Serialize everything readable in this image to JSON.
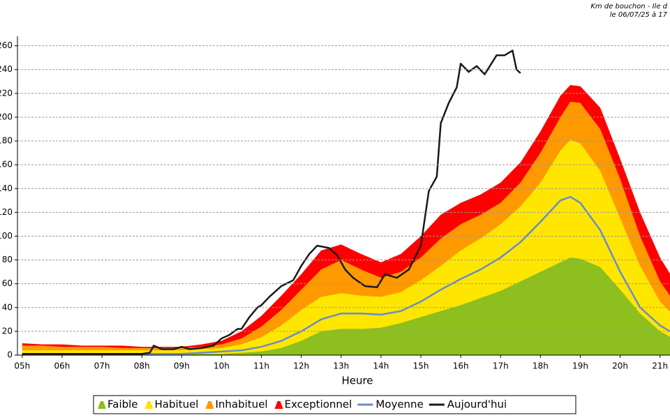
{
  "chart_data": {
    "type": "area",
    "title": "Km de bouchon - Ile d",
    "subtitle": "le 06/07/25 à 17",
    "xlabel": "Heure",
    "x": [
      5,
      5.5,
      6,
      6.5,
      7,
      7.5,
      8,
      8.5,
      9,
      9.5,
      10,
      10.5,
      11,
      11.5,
      12,
      12.5,
      13,
      13.5,
      14,
      14.5,
      15,
      15.5,
      16,
      16.5,
      17,
      17.5,
      18,
      18.5,
      18.75,
      19,
      19.5,
      20,
      20.5,
      21,
      21.5
    ],
    "xlim": [
      4.88,
      21.25
    ],
    "xticks": [
      {
        "value": 5,
        "label": "05h"
      },
      {
        "value": 6,
        "label": "06h"
      },
      {
        "value": 7,
        "label": "07h"
      },
      {
        "value": 8,
        "label": "08h"
      },
      {
        "value": 9,
        "label": "09h"
      },
      {
        "value": 10,
        "label": "10h"
      },
      {
        "value": 11,
        "label": "11h"
      },
      {
        "value": 12,
        "label": "12h"
      },
      {
        "value": 13,
        "label": "13h"
      },
      {
        "value": 14,
        "label": "14h"
      },
      {
        "value": 15,
        "label": "15h"
      },
      {
        "value": 16,
        "label": "16h"
      },
      {
        "value": 17,
        "label": "17h"
      },
      {
        "value": 18,
        "label": "18h"
      },
      {
        "value": 19,
        "label": "19h"
      },
      {
        "value": 20,
        "label": "20h"
      },
      {
        "value": 21,
        "label": "21h"
      }
    ],
    "ylim": [
      0,
      268
    ],
    "yticks": [
      0,
      20,
      40,
      60,
      80,
      100,
      120,
      140,
      160,
      180,
      200,
      220,
      240,
      260
    ],
    "grid": true,
    "legend": "bottom",
    "series": [
      {
        "name": "Faible",
        "kind": "area",
        "color": "#8dbf1f",
        "values": [
          1,
          1,
          1,
          1,
          1,
          1,
          1,
          1,
          1,
          1,
          1,
          2,
          3,
          6,
          12,
          20,
          22,
          22,
          23,
          27,
          32,
          37,
          42,
          48,
          54,
          62,
          70,
          78,
          82,
          81,
          74,
          55,
          35,
          20,
          11
        ]
      },
      {
        "name": "Habituel",
        "kind": "area",
        "color": "#ffe600",
        "values": [
          4,
          4,
          4,
          4,
          4,
          4,
          4,
          4,
          4,
          5,
          6,
          9,
          15,
          25,
          38,
          49,
          52,
          50,
          49,
          53,
          63,
          75,
          88,
          98,
          110,
          125,
          145,
          172,
          181,
          178,
          155,
          115,
          75,
          45,
          28
        ]
      },
      {
        "name": "Inhabituel",
        "kind": "area",
        "color": "#ff9900",
        "values": [
          8,
          8,
          7,
          7,
          7,
          6,
          6,
          6,
          6,
          7,
          9,
          14,
          24,
          38,
          55,
          72,
          80,
          72,
          65,
          70,
          82,
          98,
          110,
          118,
          128,
          145,
          170,
          200,
          213,
          212,
          190,
          148,
          100,
          62,
          38
        ]
      },
      {
        "name": "Exceptionnel",
        "kind": "area",
        "color": "#ff0000",
        "values": [
          10,
          9,
          9,
          8,
          8,
          8,
          7,
          7,
          7,
          9,
          12,
          20,
          33,
          50,
          68,
          88,
          93,
          85,
          78,
          85,
          100,
          118,
          128,
          135,
          145,
          162,
          188,
          218,
          227,
          226,
          208,
          165,
          120,
          82,
          55
        ]
      },
      {
        "name": "Moyenne",
        "kind": "line",
        "color": "#6b8cc7",
        "values": [
          1,
          1,
          1,
          1,
          1,
          1,
          1,
          1,
          1,
          2,
          3,
          4,
          7,
          12,
          20,
          30,
          35,
          35,
          34,
          37,
          45,
          55,
          64,
          72,
          82,
          95,
          112,
          130,
          133,
          128,
          105,
          70,
          40,
          25,
          15
        ]
      },
      {
        "name": "Aujourd'hui",
        "kind": "line",
        "color": "#1a1a1a",
        "x": [
          5,
          6,
          7,
          8,
          8.2,
          8.3,
          8.5,
          8.8,
          9,
          9.2,
          9.5,
          9.8,
          10,
          10.2,
          10.4,
          10.5,
          10.7,
          10.9,
          11,
          11.2,
          11.4,
          11.5,
          11.8,
          12,
          12.2,
          12.4,
          12.7,
          12.9,
          13.1,
          13.3,
          13.6,
          13.9,
          14.1,
          14.4,
          14.7,
          15,
          15.2,
          15.4,
          15.5,
          15.7,
          15.9,
          16,
          16.2,
          16.4,
          16.6,
          16.9,
          17.1,
          17.3,
          17.4,
          17.5
        ],
        "values": [
          1,
          1,
          1,
          1,
          2,
          8,
          5,
          5,
          7,
          5,
          6,
          8,
          14,
          17,
          22,
          22,
          32,
          40,
          42,
          49,
          55,
          58,
          63,
          75,
          85,
          92,
          90,
          84,
          72,
          65,
          58,
          57,
          68,
          65,
          72,
          92,
          138,
          150,
          195,
          212,
          225,
          245,
          238,
          243,
          236,
          252,
          252,
          256,
          240,
          237
        ]
      }
    ]
  }
}
